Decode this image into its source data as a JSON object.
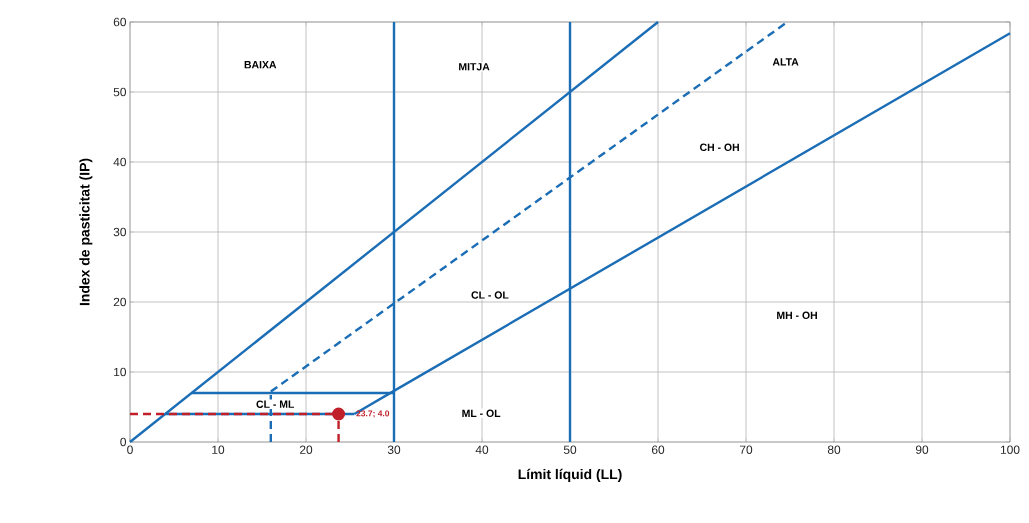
{
  "chart_data": {
    "type": "line",
    "xlabel": "Límit líquid (LL)",
    "ylabel": "Index de pasticitat (IP)",
    "xlim": [
      0,
      100
    ],
    "ylim": [
      0,
      60
    ],
    "xticks": [
      0,
      10,
      20,
      30,
      40,
      50,
      60,
      70,
      80,
      90,
      100
    ],
    "yticks": [
      0,
      10,
      20,
      30,
      40,
      50,
      60
    ],
    "grid": true,
    "series": [
      {
        "color": "#1b6db5",
        "x": [
          0,
          60
        ],
        "values": [
          0,
          60
        ]
      },
      {
        "color": "#1b6db5",
        "x": [
          25.5,
          30,
          100
        ],
        "values": [
          4,
          7.3,
          58.4
        ]
      },
      {
        "color": "#1b6db5",
        "line_style": "dashed",
        "x": [
          16,
          74.7
        ],
        "values": [
          7.2,
          60
        ]
      },
      {
        "color": "#1b6db5",
        "x": [
          7,
          30
        ],
        "values": [
          7,
          7
        ]
      },
      {
        "color": "#1b6db5",
        "x": [
          4,
          25.5
        ],
        "values": [
          4,
          4
        ]
      },
      {
        "color": "#1b6db5",
        "x": [
          30,
          30
        ],
        "values": [
          0,
          60
        ]
      },
      {
        "color": "#1b6db5",
        "x": [
          50,
          50
        ],
        "values": [
          0,
          60
        ]
      },
      {
        "color": "#1b6db5",
        "line_style": "dashed",
        "x": [
          16,
          16
        ],
        "values": [
          0,
          7.2
        ]
      },
      {
        "color": "#c0202a",
        "line_style": "dashed",
        "x": [
          0,
          23.7
        ],
        "values": [
          4,
          4
        ]
      },
      {
        "color": "#c0202a",
        "line_style": "dashed",
        "x": [
          23.7,
          23.7
        ],
        "values": [
          0,
          4
        ]
      },
      {
        "type": "scatter",
        "marker": "circle",
        "color": "#c0202a",
        "x": [
          23.7
        ],
        "values": [
          4.0
        ],
        "value_labels": [
          "23.7; 4.0"
        ]
      }
    ],
    "annotations": [
      "BAIXA",
      "MITJA",
      "ALTA",
      "CH - OH",
      "CL - OL",
      "MH - OH",
      "CL - ML",
      "ML - OL"
    ]
  }
}
